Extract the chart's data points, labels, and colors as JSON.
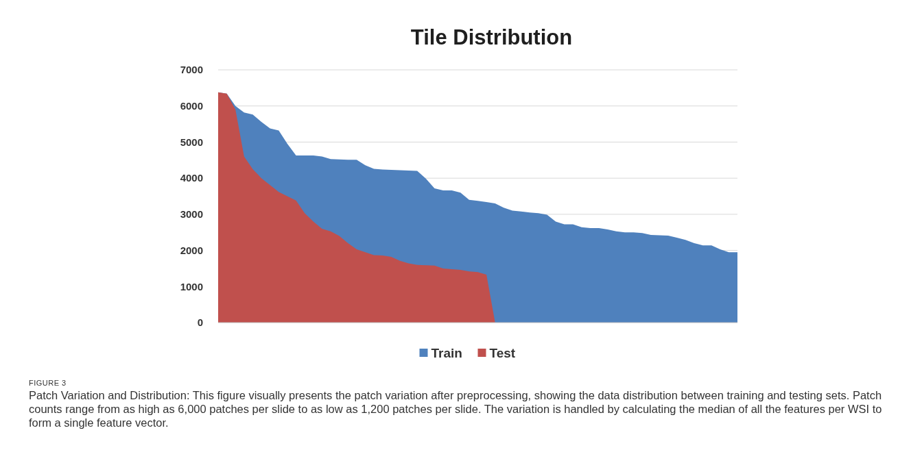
{
  "chart_data": {
    "type": "area",
    "title": "Tile Distribution",
    "categories": [
      null,
      null,
      null,
      null,
      null,
      null,
      null,
      null,
      null,
      null,
      null,
      null,
      null,
      null,
      null,
      null,
      null,
      null,
      null,
      null,
      null,
      null,
      null,
      null,
      null,
      null,
      null,
      null,
      null,
      null,
      null,
      null,
      null,
      null,
      null,
      null,
      null,
      null,
      null,
      null,
      null,
      null,
      null,
      null,
      null,
      null,
      null,
      null,
      null,
      null,
      null,
      null,
      null,
      null,
      null,
      null,
      null,
      null,
      null,
      null,
      null
    ],
    "series": [
      {
        "name": "Train",
        "color": "#4f81bd",
        "values": [
          6380,
          6340,
          6000,
          5820,
          5760,
          5560,
          5380,
          5320,
          4950,
          4630,
          4630,
          4630,
          4600,
          4530,
          4520,
          4510,
          4510,
          4360,
          4260,
          4240,
          4230,
          4220,
          4210,
          4200,
          3990,
          3720,
          3660,
          3660,
          3600,
          3400,
          3370,
          3340,
          3300,
          3180,
          3100,
          3080,
          3050,
          3030,
          2990,
          2800,
          2720,
          2720,
          2640,
          2620,
          2620,
          2580,
          2530,
          2500,
          2500,
          2480,
          2430,
          2420,
          2410,
          2350,
          2290,
          2200,
          2140,
          2140,
          2030,
          1950,
          1950
        ]
      },
      {
        "name": "Test",
        "color": "#c0504d",
        "values": [
          6380,
          6340,
          5900,
          4600,
          4250,
          4000,
          3810,
          3620,
          3500,
          3380,
          3030,
          2800,
          2600,
          2530,
          2400,
          2200,
          2030,
          1950,
          1870,
          1860,
          1820,
          1710,
          1640,
          1600,
          1590,
          1580,
          1500,
          1480,
          1460,
          1420,
          1400,
          1330,
          0,
          null,
          null,
          null,
          null,
          null,
          null,
          null,
          null,
          null,
          null,
          null,
          null,
          null,
          null,
          null,
          null,
          null,
          null,
          null,
          null,
          null,
          null,
          null,
          null,
          null,
          null,
          null,
          null
        ]
      }
    ],
    "ylim": [
      0,
      7000
    ],
    "yticks": [
      0,
      1000,
      2000,
      3000,
      4000,
      5000,
      6000,
      7000
    ],
    "grid": "y",
    "legend": "bottom",
    "annotations": [
      "FIGURE 3",
      "Patch Variation and Distribution: This figure visually presents the patch variation after preprocessing, showing the data distribution between training and testing sets. Patch counts range from as high as 6,000 patches per slide to as low as 1,200 patches per slide. The variation is handled by calculating the median of all the features per WSI to form a single feature vector."
    ]
  }
}
